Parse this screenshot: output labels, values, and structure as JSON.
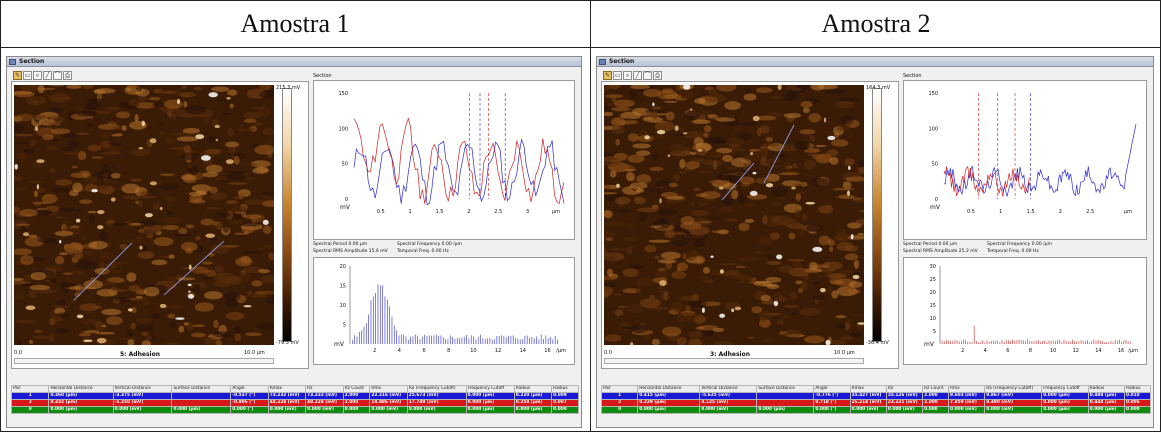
{
  "headers": {
    "left": "Amostra 1",
    "right": "Amostra 2"
  },
  "panels": [
    {
      "title": "Section",
      "toolbar_icons": [
        "pencil-icon",
        "eraser-icon",
        "zoom-icon",
        "line-icon",
        "curve-icon",
        "print-icon"
      ],
      "image": {
        "colorbar_max": "215.3 mV",
        "colorbar_min": "-79.5 mV",
        "scale_start": "0.0",
        "scale_end": "10.0 µm",
        "name": "5: Adhesion"
      },
      "section_label": "Section",
      "section_chart": {
        "y_ticks": [
          "150",
          "100",
          "50",
          "0"
        ],
        "x_ticks": [
          "0.5",
          "1",
          "1.5",
          "2",
          "2.5",
          "3"
        ],
        "y_unit": "mV",
        "x_unit": "µm"
      },
      "spectral": {
        "period": "Spectral Period 0.00 µm",
        "frequency": "Spectral Frequency 0.00 /µm",
        "rms": "Spectral RMS Amplitude 15.6 mV",
        "temporal": "Temporal Freq. 0.00 Hz"
      },
      "spectrum_chart": {
        "y_ticks": [
          "20",
          "15",
          "10",
          "5"
        ],
        "x_ticks": [
          "2",
          "4",
          "6",
          "8",
          "10",
          "12",
          "14",
          "16"
        ],
        "y_unit": "mV",
        "x_unit": "/µm"
      },
      "table": {
        "columns": [
          "Pair",
          "Horizontal Distance",
          "Vertical Distance",
          "Surface Distance",
          "Angle",
          "Rmax",
          "Rz",
          "Rz Count",
          "Rmx",
          "Ra (Frequency Cutoff)",
          "Frequency Cutoff",
          "Radius",
          "Radius"
        ],
        "rows": [
          {
            "style": "blue",
            "cells": [
              "1",
              "0.360 (µm)",
              "-3.375 (mV)",
              "",
              "-0.537 (°)",
              "73.232 (mV)",
              "73.232 (mV)",
              "2.000",
              "22.216 (mV)",
              "25.673 (mV)",
              "0.000 (µm)",
              "0.220 (µm)",
              "0.009"
            ]
          },
          {
            "style": "red",
            "cells": [
              "2",
              "0.332 (µm)",
              "-5.250 (mV)",
              "",
              "-0.906 (°)",
              "48.228 (mV)",
              "48.228 (mV)",
              "2.000",
              "18.886 (mV)",
              "17.749 (mV)",
              "0.000 (µm)",
              "0.258 (µm)",
              "0.007"
            ]
          },
          {
            "style": "green",
            "cells": [
              "0",
              "0.000 (µm)",
              "0.000 (mV)",
              "0.000 (µm)",
              "0.000 (°)",
              "0.000 (mV)",
              "0.000 (mV)",
              "0.000",
              "0.000 (mV)",
              "0.000 (mV)",
              "0.000 (µm)",
              "0.000 (µm)",
              "0.000"
            ]
          }
        ]
      }
    },
    {
      "title": "Section",
      "toolbar_icons": [
        "pencil-icon",
        "eraser-icon",
        "zoom-icon",
        "line-icon",
        "curve-icon",
        "print-icon"
      ],
      "image": {
        "colorbar_max": "164.3 mV",
        "colorbar_min": "-36.4 mV",
        "scale_start": "0.0",
        "scale_end": "10.0 µm",
        "name": "3: Adhesion"
      },
      "section_label": "Section",
      "section_chart": {
        "y_ticks": [
          "150",
          "100",
          "50",
          "0"
        ],
        "x_ticks": [
          "0.5",
          "1",
          "1.5",
          "2",
          "2.5"
        ],
        "y_unit": "mV",
        "x_unit": "µm"
      },
      "spectral": {
        "period": "Spectral Period 0.00 µm",
        "frequency": "Spectral Frequency 0.00 /µm",
        "rms": "Spectral RMS Amplitude 25.2 mV",
        "temporal": "Temporal Freq. 0.00 Hz"
      },
      "spectrum_chart": {
        "y_ticks": [
          "30",
          "25",
          "20",
          "15",
          "10",
          "5"
        ],
        "x_ticks": [
          "2",
          "4",
          "6",
          "8",
          "10",
          "12",
          "14",
          "16"
        ],
        "y_unit": "mV",
        "x_unit": "/µm"
      },
      "table": {
        "columns": [
          "Pair",
          "Horizontal Distance",
          "Vertical Distance",
          "Surface Distance",
          "Angle",
          "Rmax",
          "Rz",
          "Rz Count",
          "Rmx",
          "Ra (Frequency Cutoff)",
          "Frequency Cutoff",
          "Radius",
          "Radius"
        ],
        "rows": [
          {
            "style": "blue",
            "cells": [
              "1",
              "0.415 (µm)",
              "-5.625 (mV)",
              "",
              "-0.776 (°)",
              "35.427 (mV)",
              "35.126 (mV)",
              "2.000",
              "9.603 (mV)",
              "9.867 (mV)",
              "0.000 (µm)",
              "0.488 (µm)",
              "0.010"
            ]
          },
          {
            "style": "red",
            "cells": [
              "2",
              "0.329 (µm)",
              "4.125 (mV)",
              "",
              "0.718 (°)",
              "26.214 (mV)",
              "23.321 (mV)",
              "2.000",
              "7.859 (mV)",
              "8.490 (mV)",
              "0.000 (µm)",
              "0.448 (µm)",
              "0.006"
            ]
          },
          {
            "style": "green",
            "cells": [
              "0",
              "0.000 (µm)",
              "0.000 (mV)",
              "0.000 (µm)",
              "0.000 (°)",
              "0.000 (mV)",
              "0.000 (mV)",
              "0.000",
              "0.000 (mV)",
              "0.000 (mV)",
              "0.000 (µm)",
              "0.000 (µm)",
              "0.000"
            ]
          }
        ]
      }
    }
  ]
}
